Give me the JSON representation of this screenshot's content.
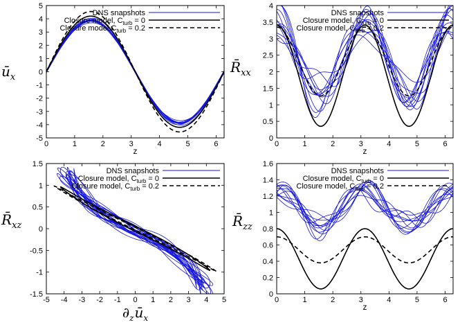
{
  "chart_data": [
    {
      "id": "ux",
      "type": "line",
      "ylabel": "ū_x",
      "ylabel_main": "ū",
      "ylabel_sub": "x",
      "xlabel": "z",
      "xlim": [
        0,
        6.2832
      ],
      "ylim": [
        -5,
        5
      ],
      "xticks": [
        0,
        1,
        2,
        3,
        4,
        5,
        6
      ],
      "yticks": [
        -5,
        -4,
        -3,
        -2,
        -1,
        0,
        1,
        2,
        3,
        4,
        5
      ],
      "legend": [
        "DNS snapshots",
        "Closure model, C_turb = 0",
        "Closure model,C_turb = 0.2"
      ],
      "legend_main": [
        "DNS snapshots",
        "Closure model, C",
        "Closure model,C"
      ],
      "legend_sub": [
        "",
        "turb",
        "turb"
      ],
      "legend_tail": [
        "",
        " = 0",
        " = 0.2"
      ],
      "series": [
        {
          "name": "Closure model, C_turb = 0",
          "style": "solid",
          "amplitude": 4.2,
          "shape": "sin"
        },
        {
          "name": "Closure model,C_turb = 0.2",
          "style": "dashed",
          "amplitude": 4.55,
          "shape": "sin"
        },
        {
          "name": "DNS snapshots",
          "style": "blue",
          "count": 12,
          "amplitude_range": [
            3.75,
            4.05
          ],
          "shape": "sin"
        }
      ]
    },
    {
      "id": "rxx",
      "type": "line",
      "ylabel": "R̄_xx",
      "ylabel_main": "R̄",
      "ylabel_sub": "xx",
      "xlabel": "z",
      "xlim": [
        0,
        6.2832
      ],
      "ylim": [
        0,
        4
      ],
      "xticks": [
        0,
        1,
        2,
        3,
        4,
        5,
        6
      ],
      "yticks": [
        0,
        0.5,
        1,
        1.5,
        2,
        2.5,
        3,
        3.5,
        4
      ],
      "legend": [
        "DNS snapshots",
        "Closure model, C_turb = 0",
        "Closure model, C_turb = 0.2"
      ],
      "legend_main": [
        "DNS snapshots",
        "Closure model, C",
        "Closure model, C"
      ],
      "legend_sub": [
        "",
        "turb",
        "turb"
      ],
      "legend_tail": [
        "",
        " = 0",
        " = 0.2"
      ],
      "series": [
        {
          "name": "Closure model, C_turb = 0",
          "style": "solid",
          "mean": 1.88,
          "amplitude": 1.53,
          "shape": "cos2z"
        },
        {
          "name": "Closure model, C_turb = 0.2",
          "style": "dashed",
          "mean": 2.31,
          "amplitude": 1.04,
          "shape": "cos2z"
        },
        {
          "name": "DNS snapshots",
          "style": "blue",
          "count": 12,
          "mean": 2.4,
          "amplitude": 1.1,
          "shape": "cos2z"
        }
      ]
    },
    {
      "id": "rxz",
      "type": "scatter-line",
      "ylabel": "R̄_xz",
      "ylabel_main": "R̄",
      "ylabel_sub": "xz",
      "xlabel": "∂_z ū_x",
      "xlabel_main": "∂",
      "xlabel_mid": "ū",
      "xlabel_sub1": "z",
      "xlabel_sub2": "x",
      "xlim": [
        -5,
        5
      ],
      "ylim": [
        -1.5,
        1.5
      ],
      "xticks": [
        -5,
        -4,
        -3,
        -2,
        -1,
        0,
        1,
        2,
        3,
        4,
        5
      ],
      "yticks": [
        -1.5,
        -1,
        -0.5,
        0,
        0.5,
        1,
        1.5
      ],
      "legend": [
        "DNS snapshots",
        "Closure model, C_turb = 0",
        "Closure model, C_turb = 0.2"
      ],
      "legend_main": [
        "DNS snapshots",
        "Closure model, C",
        "Closure model, C"
      ],
      "legend_sub": [
        "",
        "turb",
        "turb"
      ],
      "legend_tail": [
        "",
        " = 0",
        " = 0.2"
      ],
      "series": [
        {
          "name": "Closure model, C_turb = 0",
          "style": "solid",
          "x_amplitude": 4.2
        },
        {
          "name": "Closure model, C_turb = 0.2",
          "style": "dashed",
          "x_amplitude": 4.55
        },
        {
          "name": "DNS snapshots",
          "style": "blue",
          "count": 12
        }
      ]
    },
    {
      "id": "rzz",
      "type": "line",
      "ylabel": "R̄_zz",
      "ylabel_main": "R̄",
      "ylabel_sub": "zz",
      "xlabel": "z",
      "xlim": [
        0,
        6.2832
      ],
      "ylim": [
        0,
        1.6
      ],
      "xticks": [
        0,
        1,
        2,
        3,
        4,
        5,
        6
      ],
      "yticks": [
        0,
        0.2,
        0.4,
        0.6,
        0.8,
        1,
        1.2,
        1.4,
        1.6
      ],
      "legend": [
        "DNS snapshots",
        "Closure model, C_turb = 0",
        "Closure model, C_turb = 0.2"
      ],
      "legend_main": [
        "DNS snapshots",
        "Closure model, C",
        "Closure model, C"
      ],
      "legend_sub": [
        "",
        "turb",
        "turb"
      ],
      "legend_tail": [
        "",
        " = 0",
        " = 0.2"
      ],
      "series": [
        {
          "name": "Closure model, C_turb = 0",
          "style": "solid",
          "mean": 0.43,
          "amplitude": 0.37,
          "shape": "cos2z"
        },
        {
          "name": "Closure model, C_turb = 0.2",
          "style": "dashed",
          "mean": 0.54,
          "amplitude": 0.16,
          "shape": "cos2z"
        },
        {
          "name": "DNS snapshots",
          "style": "blue",
          "count": 12,
          "mean": 1.06,
          "amplitude": 0.22,
          "shape": "cos2z"
        }
      ]
    }
  ],
  "colors": {
    "dns": "#1515e0",
    "model": "#000000",
    "axes": "#000000"
  }
}
